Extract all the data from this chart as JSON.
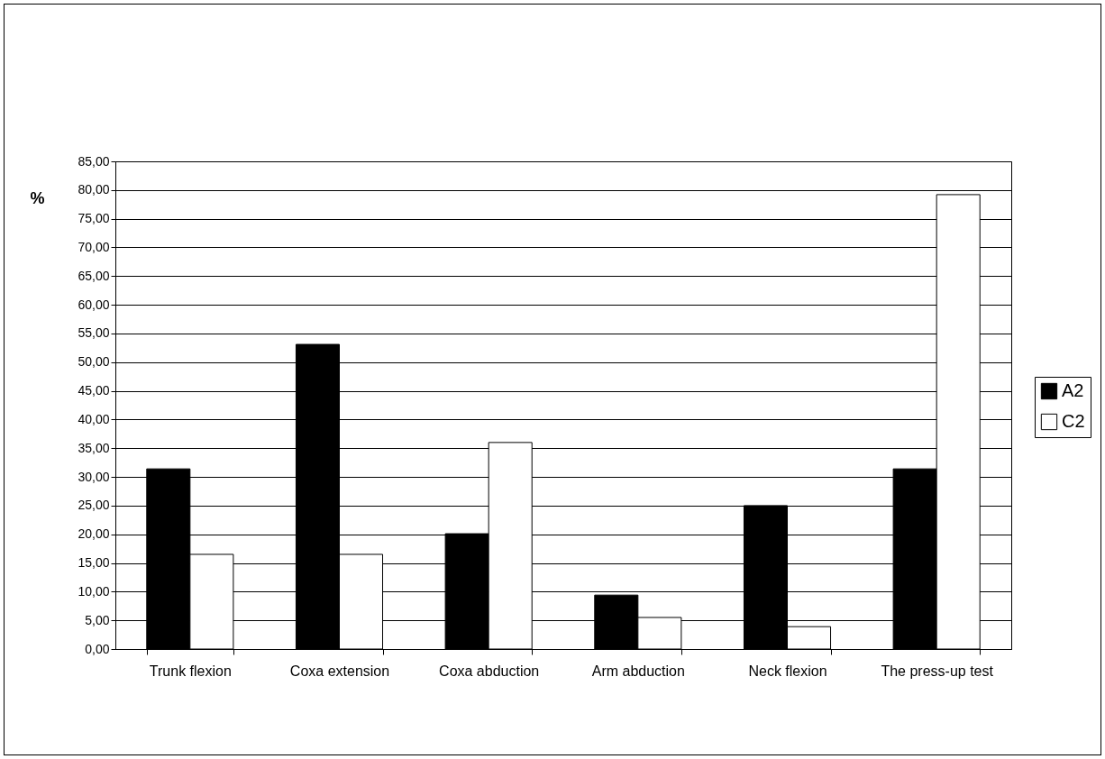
{
  "chart_data": {
    "type": "bar",
    "ylabel": "%",
    "categories": [
      "Trunk flexion",
      "Coxa extension",
      "Coxa abduction",
      "Arm abduction",
      "Neck flexion",
      "The press-up test"
    ],
    "series": [
      {
        "name": "A2",
        "color": "#000000",
        "values": [
          31.4,
          53.1,
          20.1,
          9.4,
          25.0,
          31.4
        ]
      },
      {
        "name": "C2",
        "color": "#ffffff",
        "values": [
          16.5,
          16.5,
          36.0,
          5.5,
          3.9,
          79.2
        ]
      }
    ],
    "ylim": [
      0,
      85
    ],
    "yticks": [
      {
        "value": 0,
        "label": "0,00"
      },
      {
        "value": 5,
        "label": "5,00"
      },
      {
        "value": 10,
        "label": "10,00"
      },
      {
        "value": 15,
        "label": "15,00"
      },
      {
        "value": 20,
        "label": "20,00"
      },
      {
        "value": 25,
        "label": "25,00"
      },
      {
        "value": 30,
        "label": "30,00"
      },
      {
        "value": 35,
        "label": "35,00"
      },
      {
        "value": 40,
        "label": "40,00"
      },
      {
        "value": 45,
        "label": "45,00"
      },
      {
        "value": 50,
        "label": "50,00"
      },
      {
        "value": 55,
        "label": "55,00"
      },
      {
        "value": 60,
        "label": "60,00"
      },
      {
        "value": 65,
        "label": "65,00"
      },
      {
        "value": 70,
        "label": "70,00"
      },
      {
        "value": 75,
        "label": "75,00"
      },
      {
        "value": 80,
        "label": "80,00"
      },
      {
        "value": 85,
        "label": "85,00"
      }
    ],
    "grid": "y",
    "legend": "right"
  }
}
